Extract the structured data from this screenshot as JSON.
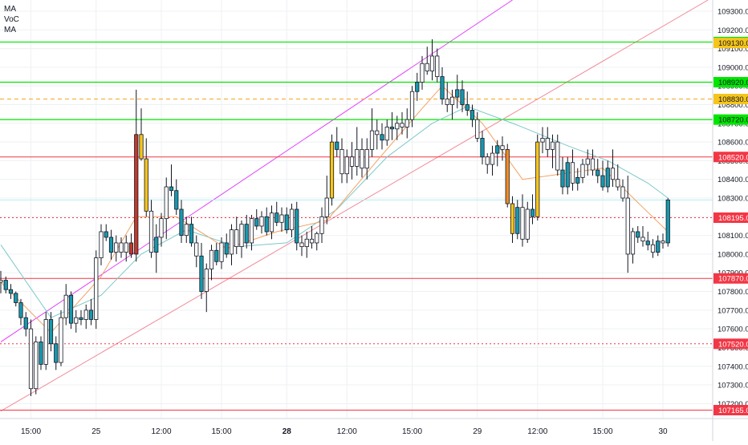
{
  "legend": {
    "items": [
      "MA",
      "VoC",
      "MA"
    ]
  },
  "colors": {
    "bull": "#ffffff",
    "bear": "#ffffff",
    "wick": "#131722",
    "teal": "#1798ae",
    "gold": "#f6c51b",
    "orange": "#f08a24",
    "darkred": "#c0392b",
    "ma_fast": "#f4a261",
    "ma_slow": "#7ec8c8",
    "green_line": "#00e600",
    "red_line": "#f23645",
    "orange_dash": "#f6a623",
    "magenta": "#e040fb",
    "pink_line": "#f28b99",
    "grid": "#eef0f3"
  },
  "chart_data": {
    "type": "candlestick",
    "ylim": [
      107120,
      109360
    ],
    "y_ticks": [
      107200,
      107300,
      107400,
      107500,
      107600,
      107700,
      107800,
      107900,
      108000,
      108100,
      108200,
      108300,
      108400,
      108500,
      108600,
      108700,
      108800,
      108900,
      109000,
      109100,
      109200,
      109300
    ],
    "x_ticks": [
      {
        "label": "15:00",
        "idx": 6,
        "bold": false
      },
      {
        "label": "25",
        "idx": 19,
        "bold": false
      },
      {
        "label": "12:00",
        "idx": 32,
        "bold": false
      },
      {
        "label": "15:00",
        "idx": 44,
        "bold": false
      },
      {
        "label": "28",
        "idx": 57,
        "bold": true
      },
      {
        "label": "12:00",
        "idx": 69,
        "bold": false
      },
      {
        "label": "15:00",
        "idx": 82,
        "bold": false
      },
      {
        "label": "29",
        "idx": 95,
        "bold": false
      },
      {
        "label": "12:00",
        "idx": 107,
        "bold": false
      },
      {
        "label": "15:00",
        "idx": 120,
        "bold": false
      },
      {
        "label": "30",
        "idx": 132,
        "bold": false
      }
    ],
    "levels": [
      {
        "price": 109135,
        "label": "109135.0",
        "style": "green",
        "badge": "green"
      },
      {
        "price": 109130,
        "label": "109130.0",
        "style": "none",
        "badge": "gold"
      },
      {
        "price": 108920,
        "label": "108920.0",
        "style": "green",
        "badge": "green"
      },
      {
        "price": 108830,
        "label": "108830.0",
        "style": "orange-dash",
        "badge": "gold"
      },
      {
        "price": 108720,
        "label": "108720.0",
        "style": "green",
        "badge": "green"
      },
      {
        "price": 108520,
        "label": "108520.0",
        "style": "red",
        "badge": "red"
      },
      {
        "price": 108195,
        "label": "108195.0",
        "style": "red-dot",
        "badge": "red"
      },
      {
        "price": 107870,
        "label": "107870.0",
        "style": "red",
        "badge": "red"
      },
      {
        "price": 107520,
        "label": "107520.0",
        "style": "red-dot",
        "badge": "red"
      },
      {
        "price": 107165,
        "label": "107165.0",
        "style": "red",
        "badge": "red"
      }
    ],
    "trendlines": [
      {
        "color": "magenta",
        "from": {
          "idx": 0,
          "price": 107530
        },
        "to": {
          "idx": 102,
          "price": 109360
        }
      },
      {
        "color": "pink",
        "from": {
          "idx": 0,
          "price": 107160
        },
        "to": {
          "idx": 141,
          "price": 109360
        }
      }
    ],
    "candles": [
      [
        107850,
        107910,
        107790,
        107860,
        "w"
      ],
      [
        107860,
        107880,
        107790,
        107810,
        "t"
      ],
      [
        107810,
        107840,
        107760,
        107790,
        "t"
      ],
      [
        107790,
        107800,
        107720,
        107740,
        "t"
      ],
      [
        107740,
        107760,
        107620,
        107660,
        "t"
      ],
      [
        107660,
        107690,
        107560,
        107600,
        "t"
      ],
      [
        107600,
        107650,
        107240,
        107280,
        "w"
      ],
      [
        107280,
        107560,
        107250,
        107530,
        "w"
      ],
      [
        107530,
        107560,
        107380,
        107410,
        "t"
      ],
      [
        107410,
        107690,
        107380,
        107650,
        "w"
      ],
      [
        107650,
        107690,
        107480,
        107520,
        "t"
      ],
      [
        107520,
        107560,
        107380,
        107420,
        "t"
      ],
      [
        107420,
        107700,
        107400,
        107660,
        "w"
      ],
      [
        107660,
        107840,
        107620,
        107780,
        "w"
      ],
      [
        107780,
        107800,
        107600,
        107630,
        "t"
      ],
      [
        107630,
        107700,
        107580,
        107660,
        "w"
      ],
      [
        107660,
        107700,
        107620,
        107650,
        "t"
      ],
      [
        107650,
        107730,
        107600,
        107700,
        "w"
      ],
      [
        107700,
        107760,
        107620,
        107650,
        "t"
      ],
      [
        107650,
        108020,
        107600,
        107980,
        "w"
      ],
      [
        107980,
        108160,
        107940,
        108120,
        "w"
      ],
      [
        108120,
        108160,
        108070,
        108090,
        "t"
      ],
      [
        108090,
        108130,
        107970,
        108010,
        "t"
      ],
      [
        108010,
        108100,
        107960,
        108060,
        "w"
      ],
      [
        108060,
        108090,
        107980,
        108010,
        "w"
      ],
      [
        108010,
        108100,
        107960,
        108060,
        "w"
      ],
      [
        108060,
        108110,
        107980,
        108000,
        "r"
      ],
      [
        108000,
        108880,
        107960,
        108640,
        "r"
      ],
      [
        108640,
        108780,
        108500,
        108510,
        "g"
      ],
      [
        108510,
        108620,
        108200,
        108230,
        "g"
      ],
      [
        108230,
        108290,
        107980,
        108010,
        "w"
      ],
      [
        108010,
        108160,
        107900,
        108090,
        "t"
      ],
      [
        108090,
        108220,
        108040,
        108190,
        "w"
      ],
      [
        108190,
        108410,
        108080,
        108360,
        "w"
      ],
      [
        108360,
        108480,
        108310,
        108340,
        "t"
      ],
      [
        108340,
        108400,
        108210,
        108240,
        "t"
      ],
      [
        108240,
        108290,
        108060,
        108100,
        "t"
      ],
      [
        108100,
        108200,
        108060,
        108160,
        "w"
      ],
      [
        108160,
        108200,
        108040,
        108060,
        "t"
      ],
      [
        108060,
        108100,
        107930,
        107990,
        "w"
      ],
      [
        107990,
        108060,
        107760,
        107800,
        "t"
      ],
      [
        107800,
        107950,
        107690,
        107920,
        "w"
      ],
      [
        107920,
        108050,
        107860,
        108020,
        "w"
      ],
      [
        108020,
        108060,
        107940,
        107960,
        "t"
      ],
      [
        107960,
        108090,
        107920,
        108060,
        "w"
      ],
      [
        108060,
        108110,
        107980,
        108000,
        "t"
      ],
      [
        108000,
        108160,
        107940,
        108130,
        "w"
      ],
      [
        108130,
        108200,
        108000,
        108040,
        "w"
      ],
      [
        108040,
        108180,
        107980,
        108160,
        "w"
      ],
      [
        108160,
        108210,
        108030,
        108060,
        "t"
      ],
      [
        108060,
        108210,
        108020,
        108190,
        "w"
      ],
      [
        108190,
        108240,
        108130,
        108150,
        "t"
      ],
      [
        108150,
        108230,
        108110,
        108200,
        "w"
      ],
      [
        108200,
        108250,
        108100,
        108120,
        "t"
      ],
      [
        108120,
        108260,
        108080,
        108220,
        "w"
      ],
      [
        108220,
        108280,
        108150,
        108170,
        "t"
      ],
      [
        108170,
        108250,
        108120,
        108210,
        "w"
      ],
      [
        108210,
        108250,
        108110,
        108130,
        "t"
      ],
      [
        108130,
        108270,
        108090,
        108240,
        "w"
      ],
      [
        108240,
        108280,
        108020,
        108060,
        "t"
      ],
      [
        108060,
        108100,
        107990,
        108040,
        "w"
      ],
      [
        108040,
        108120,
        107980,
        108080,
        "w"
      ],
      [
        108080,
        108150,
        108030,
        108060,
        "w"
      ],
      [
        108060,
        108120,
        108020,
        108110,
        "w"
      ],
      [
        108110,
        108250,
        108060,
        108200,
        "w"
      ],
      [
        108200,
        108420,
        108160,
        108300,
        "w"
      ],
      [
        108300,
        108640,
        108260,
        108600,
        "g"
      ],
      [
        108600,
        108680,
        108520,
        108560,
        "t"
      ],
      [
        108560,
        108620,
        108380,
        108430,
        "w"
      ],
      [
        108430,
        108560,
        108380,
        108520,
        "w"
      ],
      [
        108520,
        108600,
        108400,
        108470,
        "w"
      ],
      [
        108470,
        108680,
        108420,
        108560,
        "w"
      ],
      [
        108560,
        108620,
        108410,
        108460,
        "w"
      ],
      [
        108460,
        108620,
        108400,
        108560,
        "w"
      ],
      [
        108560,
        108780,
        108520,
        108660,
        "w"
      ],
      [
        108660,
        108720,
        108560,
        108640,
        "w"
      ],
      [
        108640,
        108700,
        108560,
        108610,
        "t"
      ],
      [
        108610,
        108720,
        108580,
        108680,
        "w"
      ],
      [
        108680,
        108760,
        108610,
        108670,
        "t"
      ],
      [
        108670,
        108740,
        108610,
        108700,
        "w"
      ],
      [
        108700,
        108760,
        108640,
        108680,
        "w"
      ],
      [
        108680,
        108780,
        108620,
        108720,
        "w"
      ],
      [
        108720,
        108900,
        108680,
        108870,
        "w"
      ],
      [
        108870,
        108970,
        108820,
        108920,
        "t"
      ],
      [
        108920,
        109060,
        108880,
        109020,
        "w"
      ],
      [
        109020,
        109110,
        108960,
        108980,
        "w"
      ],
      [
        108980,
        109150,
        108930,
        109060,
        "w"
      ],
      [
        109060,
        109100,
        108920,
        108950,
        "w"
      ],
      [
        108950,
        109000,
        108800,
        108830,
        "t"
      ],
      [
        108830,
        108920,
        108760,
        108800,
        "w"
      ],
      [
        108800,
        108880,
        108720,
        108840,
        "w"
      ],
      [
        108840,
        108960,
        108780,
        108880,
        "t"
      ],
      [
        108880,
        108930,
        108760,
        108800,
        "t"
      ],
      [
        108800,
        108870,
        108740,
        108770,
        "t"
      ],
      [
        108770,
        108800,
        108680,
        108720,
        "t"
      ],
      [
        108720,
        108760,
        108600,
        108620,
        "w"
      ],
      [
        108620,
        108660,
        108480,
        108520,
        "t"
      ],
      [
        108520,
        108540,
        108430,
        108480,
        "w"
      ],
      [
        108480,
        108580,
        108420,
        108540,
        "w"
      ],
      [
        108540,
        108610,
        108470,
        108580,
        "t"
      ],
      [
        108580,
        108630,
        108500,
        108560,
        "w"
      ],
      [
        108560,
        108590,
        108250,
        108270,
        "o"
      ],
      [
        108270,
        108310,
        108060,
        108110,
        "g"
      ],
      [
        108110,
        108290,
        108080,
        108250,
        "t"
      ],
      [
        108250,
        108320,
        108040,
        108080,
        "w"
      ],
      [
        108080,
        108280,
        108060,
        108240,
        "w"
      ],
      [
        108240,
        108320,
        108160,
        108200,
        "t"
      ],
      [
        108200,
        108640,
        108180,
        108600,
        "g"
      ],
      [
        108600,
        108680,
        108540,
        108620,
        "w"
      ],
      [
        108620,
        108680,
        108520,
        108560,
        "w"
      ],
      [
        108560,
        108640,
        108460,
        108600,
        "w"
      ],
      [
        108600,
        108640,
        108420,
        108450,
        "w"
      ],
      [
        108450,
        108520,
        108320,
        108360,
        "t"
      ],
      [
        108360,
        108520,
        108320,
        108490,
        "t"
      ],
      [
        108490,
        108560,
        108340,
        108380,
        "w"
      ],
      [
        108380,
        108460,
        108340,
        108410,
        "t"
      ],
      [
        108410,
        108510,
        108380,
        108480,
        "w"
      ],
      [
        108480,
        108560,
        108420,
        108510,
        "w"
      ],
      [
        108510,
        108560,
        108420,
        108450,
        "w"
      ],
      [
        108450,
        108510,
        108380,
        108420,
        "t"
      ],
      [
        108420,
        108500,
        108340,
        108360,
        "t"
      ],
      [
        108360,
        108500,
        108330,
        108460,
        "t"
      ],
      [
        108460,
        108560,
        108360,
        108400,
        "w"
      ],
      [
        108400,
        108480,
        108340,
        108360,
        "w"
      ],
      [
        108360,
        108400,
        108280,
        108300,
        "w"
      ],
      [
        108300,
        108420,
        107900,
        108000,
        "w"
      ],
      [
        108000,
        108140,
        107950,
        108120,
        "w"
      ],
      [
        108120,
        108150,
        108060,
        108090,
        "t"
      ],
      [
        108090,
        108150,
        108040,
        108070,
        "w"
      ],
      [
        108070,
        108120,
        108020,
        108050,
        "t"
      ],
      [
        108050,
        108080,
        107980,
        108010,
        "w"
      ],
      [
        108010,
        108100,
        107990,
        108070,
        "t"
      ],
      [
        108070,
        108110,
        108030,
        108060,
        "w"
      ],
      [
        108060,
        108300,
        108040,
        108290,
        "t"
      ]
    ],
    "ma_fast": [
      [
        0,
        107850
      ],
      [
        10,
        107580
      ],
      [
        20,
        107880
      ],
      [
        27,
        108200
      ],
      [
        35,
        108200
      ],
      [
        45,
        108030
      ],
      [
        55,
        108120
      ],
      [
        65,
        108180
      ],
      [
        75,
        108500
      ],
      [
        84,
        108780
      ],
      [
        88,
        108900
      ],
      [
        96,
        108700
      ],
      [
        104,
        108400
      ],
      [
        112,
        108430
      ],
      [
        120,
        108460
      ],
      [
        128,
        108250
      ],
      [
        133,
        108120
      ]
    ],
    "ma_slow": [
      [
        0,
        108050
      ],
      [
        10,
        107660
      ],
      [
        20,
        107780
      ],
      [
        28,
        108000
      ],
      [
        37,
        108130
      ],
      [
        47,
        108040
      ],
      [
        57,
        108060
      ],
      [
        67,
        108240
      ],
      [
        77,
        108520
      ],
      [
        86,
        108700
      ],
      [
        93,
        108790
      ],
      [
        103,
        108690
      ],
      [
        113,
        108580
      ],
      [
        121,
        108500
      ],
      [
        129,
        108380
      ],
      [
        133,
        108300
      ]
    ]
  }
}
